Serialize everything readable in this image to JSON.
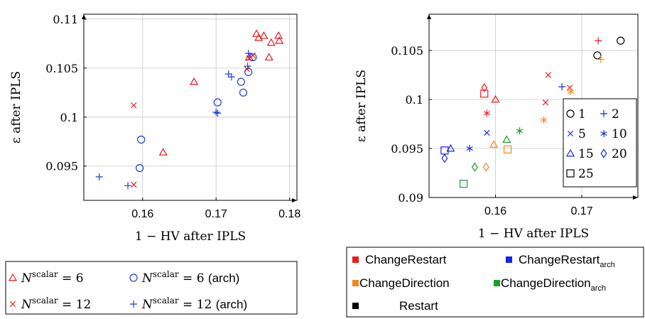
{
  "chart_data": [
    {
      "type": "scatter",
      "title": "",
      "xlabel": "1 − HV after IPLS",
      "ylabel": "ε after IPLS",
      "xlim": [
        0.152,
        0.181
      ],
      "ylim": [
        0.0915,
        0.1105
      ],
      "x_ticks": [
        "0.16",
        "0.17",
        "0.18"
      ],
      "x_tick_values": [
        0.16,
        0.17,
        0.18
      ],
      "y_ticks": [
        "0.095",
        "0.1",
        "0.105",
        "0.11"
      ],
      "y_tick_values": [
        0.095,
        0.1,
        0.105,
        0.11
      ],
      "grid": true,
      "legend_position": "below",
      "legend": [
        "N^scalar = 6",
        "N^scalar = 6 (arch)",
        "N^scalar = 12",
        "N^scalar = 12 (arch)"
      ],
      "series": [
        {
          "name": "N^scalar = 6",
          "marker": "triangle",
          "color": "#e41a1c",
          "x": [
            0.1628,
            0.167,
            0.1745,
            0.1755,
            0.1758,
            0.1765,
            0.1772,
            0.1775,
            0.1785,
            0.1786
          ],
          "y": [
            0.0964,
            0.1036,
            0.1061,
            0.1085,
            0.1081,
            0.1083,
            0.1061,
            0.1076,
            0.1083,
            0.1078
          ]
        },
        {
          "name": "N^scalar = 6 (arch)",
          "marker": "circle",
          "color": "#1f3fd6",
          "x": [
            0.1596,
            0.1598,
            0.1702,
            0.1734,
            0.1737,
            0.1744,
            0.175
          ],
          "y": [
            0.0948,
            0.0977,
            0.1015,
            0.1036,
            0.1025,
            0.1046,
            0.1061
          ]
        },
        {
          "name": "N^scalar = 12",
          "marker": "cross",
          "color": "#e41a1c",
          "x": [
            0.1588,
            0.1588,
            0.1742,
            0.1745,
            0.175
          ],
          "y": [
            0.0931,
            0.1012,
            0.1049,
            0.106,
            0.1063
          ]
        },
        {
          "name": "N^scalar = 12 (arch)",
          "marker": "plus",
          "color": "#1f3fd6",
          "x": [
            0.1541,
            0.158,
            0.17,
            0.1702,
            0.1717,
            0.1721,
            0.1743,
            0.1744
          ],
          "y": [
            0.0939,
            0.093,
            0.1005,
            0.1004,
            0.1044,
            0.1041,
            0.1052,
            0.1065
          ]
        }
      ]
    },
    {
      "type": "scatter",
      "title": "",
      "xlabel": "1 − HV after IPLS",
      "ylabel": "ε after IPLS",
      "xlim": [
        0.1523,
        0.1765
      ],
      "ylim": [
        0.09,
        0.1087
      ],
      "x_ticks": [
        "0.16",
        "0.17"
      ],
      "x_tick_values": [
        0.16,
        0.17
      ],
      "y_ticks": [
        "0.09",
        "0.095",
        "0.1",
        "0.105"
      ],
      "y_tick_values": [
        0.09,
        0.095,
        0.1,
        0.105
      ],
      "grid": true,
      "marker_legend_position": "inside-right",
      "marker_legend": [
        {
          "label": "1",
          "marker": "circle"
        },
        {
          "label": "2",
          "marker": "plus"
        },
        {
          "label": "5",
          "marker": "cross"
        },
        {
          "label": "10",
          "marker": "star"
        },
        {
          "label": "15",
          "marker": "triangle"
        },
        {
          "label": "20",
          "marker": "diamond"
        },
        {
          "label": "25",
          "marker": "square"
        }
      ],
      "color_legend_position": "below",
      "color_legend": [
        {
          "label": "ChangeRestart",
          "color": "#ee1c1c"
        },
        {
          "label": "ChangeRestart",
          "sub": "arch",
          "color": "#1a22ee"
        },
        {
          "label": "ChangeDirection",
          "color": "#f4861f"
        },
        {
          "label": "ChangeDirection",
          "sub": "arch",
          "color": "#16a02a"
        },
        {
          "label": "Restart",
          "color": "#000000"
        }
      ],
      "points": [
        {
          "x": 0.1745,
          "y": 0.106,
          "marker": "circle",
          "color": "#000000"
        },
        {
          "x": 0.1718,
          "y": 0.1045,
          "marker": "circle",
          "color": "#000000"
        },
        {
          "x": 0.1719,
          "y": 0.106,
          "marker": "plus",
          "color": "#ee1c1c"
        },
        {
          "x": 0.1722,
          "y": 0.1041,
          "marker": "plus",
          "color": "#f4861f"
        },
        {
          "x": 0.1677,
          "y": 0.1013,
          "marker": "plus",
          "color": "#1a22ee"
        },
        {
          "x": 0.1686,
          "y": 0.1012,
          "marker": "cross",
          "color": "#ee1c1c"
        },
        {
          "x": 0.1661,
          "y": 0.1025,
          "marker": "cross",
          "color": "#ee1c1c"
        },
        {
          "x": 0.1658,
          "y": 0.0997,
          "marker": "cross",
          "color": "#ee1c1c"
        },
        {
          "x": 0.159,
          "y": 0.0966,
          "marker": "cross",
          "color": "#1a22ee"
        },
        {
          "x": 0.1687,
          "y": 0.1008,
          "marker": "star",
          "color": "#f4861f"
        },
        {
          "x": 0.1656,
          "y": 0.0979,
          "marker": "star",
          "color": "#f4861f"
        },
        {
          "x": 0.159,
          "y": 0.0986,
          "marker": "star",
          "color": "#ee1c1c"
        },
        {
          "x": 0.157,
          "y": 0.095,
          "marker": "star",
          "color": "#1a22ee"
        },
        {
          "x": 0.1628,
          "y": 0.0968,
          "marker": "star",
          "color": "#16a02a"
        },
        {
          "x": 0.16,
          "y": 0.1,
          "marker": "triangle",
          "color": "#ee1c1c"
        },
        {
          "x": 0.1598,
          "y": 0.0954,
          "marker": "triangle",
          "color": "#f4861f"
        },
        {
          "x": 0.1613,
          "y": 0.0959,
          "marker": "triangle",
          "color": "#16a02a"
        },
        {
          "x": 0.1548,
          "y": 0.095,
          "marker": "triangle",
          "color": "#1a22ee"
        },
        {
          "x": 0.1587,
          "y": 0.1012,
          "marker": "diamond",
          "color": "#ee1c1c"
        },
        {
          "x": 0.1589,
          "y": 0.0931,
          "marker": "diamond",
          "color": "#f4861f"
        },
        {
          "x": 0.1576,
          "y": 0.0931,
          "marker": "diamond",
          "color": "#16a02a"
        },
        {
          "x": 0.1541,
          "y": 0.094,
          "marker": "diamond",
          "color": "#1a22ee"
        },
        {
          "x": 0.1587,
          "y": 0.1006,
          "marker": "square",
          "color": "#ee1c1c"
        },
        {
          "x": 0.1614,
          "y": 0.0949,
          "marker": "square",
          "color": "#f4861f"
        },
        {
          "x": 0.1563,
          "y": 0.0914,
          "marker": "square",
          "color": "#16a02a"
        },
        {
          "x": 0.1541,
          "y": 0.0948,
          "marker": "square",
          "color": "#1a22ee"
        }
      ]
    }
  ]
}
